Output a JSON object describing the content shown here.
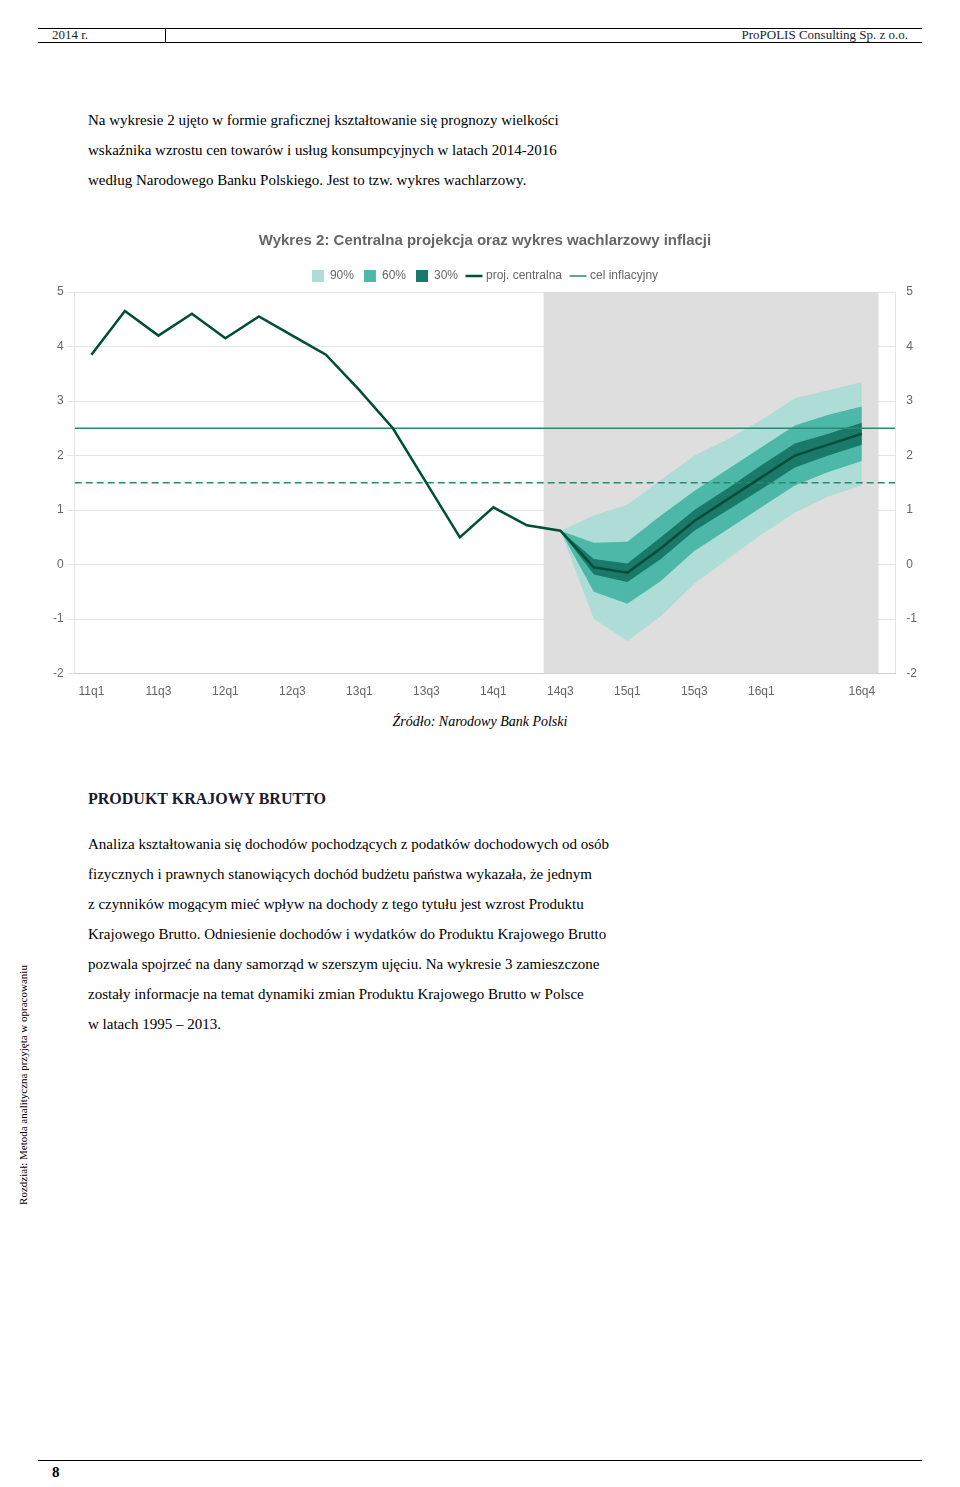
{
  "page": {
    "header_left": "2014 r.",
    "header_right": "ProPOLIS Consulting Sp. z o.o.",
    "body1": [
      "Na wykresie 2 ujęto w formie graficznej kształtowanie się prognozy wielkości",
      "wskaźnika wzrostu cen towarów i usług konsumpcyjnych w latach 2014-2016",
      "według Narodowego Banku Polskiego. Jest to tzw. wykres wachlarzowy."
    ],
    "section_title": "PRODUKT KRAJOWY BRUTTO",
    "body2": [
      "Analiza kształtowania się dochodów pochodzących z podatków dochodowych od osób",
      "fizycznych i prawnych stanowiących dochód budżetu państwa wykazała, że jednym",
      "z czynników mogącym mieć wpływ na dochody z tego tytułu jest wzrost Produktu",
      "Krajowego Brutto. Odniesienie dochodów i wydatków do Produktu Krajowego Brutto",
      "pozwala spojrzeć na dany samorząd w szerszym ujęciu. Na wykresie 3 zamieszczone",
      "zostały informacje na temat dynamiki zmian Produktu Krajowego Brutto w Polsce",
      "w latach 1995 – 2013."
    ],
    "sidebar": "Rozdział: Metoda analityczna przyjęta w opracowaniu",
    "page_number": "8"
  },
  "chart_data": {
    "type": "line",
    "title": "Wykres 2: Centralna projekcja oraz wykres wachlarzowy inflacji",
    "annotations": [
      "Źródło: Narodowy Bank Polski"
    ],
    "xlim": [
      -0.5,
      24.0
    ],
    "xticks": [
      {
        "value": 0,
        "label": "11q1"
      },
      {
        "value": 2,
        "label": "11q3"
      },
      {
        "value": 4,
        "label": "12q1"
      },
      {
        "value": 6,
        "label": "12q3"
      },
      {
        "value": 8,
        "label": "13q1"
      },
      {
        "value": 10,
        "label": "13q3"
      },
      {
        "value": 12,
        "label": "14q1"
      },
      {
        "value": 14,
        "label": "14q3"
      },
      {
        "value": 16,
        "label": "15q1"
      },
      {
        "value": 18,
        "label": "15q3"
      },
      {
        "value": 20,
        "label": "16q1"
      },
      {
        "value": 23,
        "label": "16q4"
      }
    ],
    "ylim": [
      -2,
      5
    ],
    "yticks": [
      -2,
      -1,
      0,
      1,
      2,
      3,
      4,
      5
    ],
    "y2lim": [
      -2,
      5
    ],
    "y2ticks": [
      -2,
      -1,
      0,
      1,
      2,
      3,
      4,
      5
    ],
    "grid": "y",
    "legend": "top",
    "shaded_span": {
      "start": 13.5,
      "end": 23.5,
      "color": "#dedede"
    },
    "series": [
      {
        "name": "90%",
        "type": "band",
        "color": "#aeddd8",
        "x": [
          14,
          15,
          16,
          17,
          18,
          19,
          20,
          21,
          22,
          23
        ],
        "lower": [
          0.62,
          -1.0,
          -1.4,
          -0.95,
          -0.35,
          0.1,
          0.55,
          0.95,
          1.25,
          1.45
        ],
        "upper": [
          0.62,
          0.9,
          1.1,
          1.55,
          2.0,
          2.3,
          2.65,
          3.05,
          3.2,
          3.35
        ]
      },
      {
        "name": "60%",
        "type": "band",
        "color": "#4db8a8",
        "x": [
          14,
          15,
          16,
          17,
          18,
          19,
          20,
          21,
          22,
          23
        ],
        "lower": [
          0.62,
          -0.5,
          -0.72,
          -0.3,
          0.25,
          0.65,
          1.05,
          1.45,
          1.7,
          1.9
        ],
        "upper": [
          0.62,
          0.4,
          0.42,
          0.9,
          1.35,
          1.75,
          2.15,
          2.55,
          2.75,
          2.9
        ]
      },
      {
        "name": "30%",
        "type": "band",
        "color": "#1a7a6a",
        "x": [
          14,
          15,
          16,
          17,
          18,
          19,
          20,
          21,
          22,
          23
        ],
        "lower": [
          0.62,
          -0.18,
          -0.32,
          0.1,
          0.62,
          1.0,
          1.38,
          1.78,
          2.0,
          2.2
        ],
        "upper": [
          0.62,
          0.1,
          0.02,
          0.5,
          1.0,
          1.4,
          1.82,
          2.22,
          2.4,
          2.6
        ]
      },
      {
        "name": "proj. centralna",
        "type": "line",
        "color": "#004d3a",
        "x": [
          0,
          1,
          2,
          3,
          4,
          5,
          6,
          7,
          8,
          9,
          10,
          11,
          12,
          13,
          14,
          14,
          15,
          16,
          17,
          18,
          19,
          20,
          21,
          22,
          23
        ],
        "values": [
          3.85,
          4.65,
          4.2,
          4.6,
          4.15,
          4.55,
          4.2,
          3.85,
          3.2,
          2.5,
          1.5,
          0.5,
          1.05,
          0.72,
          0.62,
          0.62,
          -0.05,
          -0.15,
          0.3,
          0.8,
          1.2,
          1.6,
          2.0,
          2.2,
          2.4
        ]
      },
      {
        "name": "cel inflacyjny",
        "type": "hline",
        "color": "#2a8a70",
        "line_style": "solid",
        "value": 2.5
      },
      {
        "type": "hline",
        "color": "#2a8a70",
        "line_style": "dashed",
        "value": 1.5
      }
    ]
  }
}
